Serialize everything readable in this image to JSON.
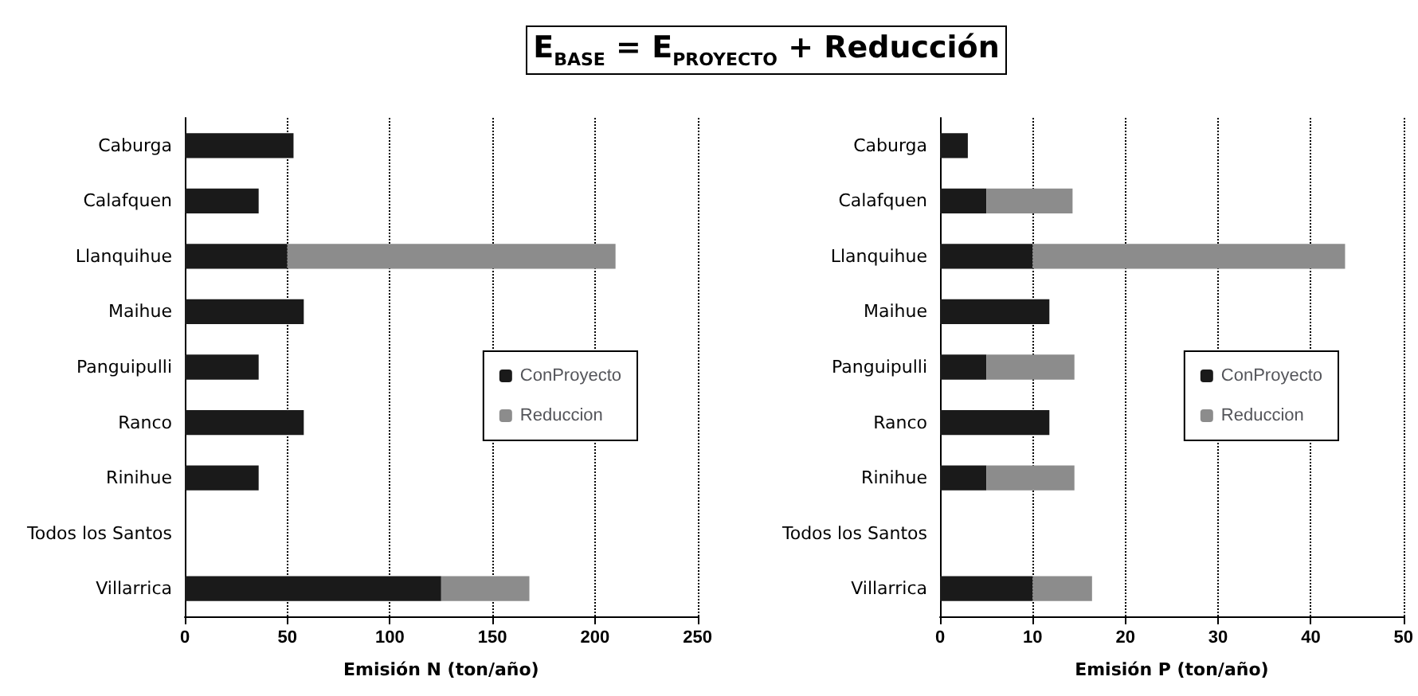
{
  "chart_data": [
    {
      "type": "bar",
      "title": "E$_{BASE}$ = E$_{PROYECTO}$ + Reducción",
      "orientation": "horizontal",
      "stacked": true,
      "xlabel": "Emisión N (ton/año)",
      "categories": [
        "Caburga",
        "Calafquen",
        "Llanquihue",
        "Maihue",
        "Panguipulli",
        "Ranco",
        "Rinihue",
        "Todos los Santos",
        "Villarrica"
      ],
      "series": [
        {
          "name": "ConProyecto",
          "color": "#1a1a1a",
          "values": [
            53,
            36,
            50,
            58,
            36,
            58,
            36,
            0,
            125
          ]
        },
        {
          "name": "Reduccion",
          "color": "#8c8c8c",
          "values": [
            0,
            0,
            160,
            0,
            0,
            0,
            0,
            0,
            43
          ]
        }
      ],
      "xlim": [
        0,
        250
      ],
      "xticks": [
        0,
        50,
        100,
        150,
        200,
        250
      ],
      "grid": "x",
      "legend": "right"
    },
    {
      "type": "bar",
      "orientation": "horizontal",
      "stacked": true,
      "xlabel": "Emisión P (ton/año)",
      "categories": [
        "Caburga",
        "Calafquen",
        "Llanquihue",
        "Maihue",
        "Panguipulli",
        "Ranco",
        "Rinihue",
        "Todos los Santos",
        "Villarrica"
      ],
      "series": [
        {
          "name": "ConProyecto",
          "color": "#1a1a1a",
          "values": [
            3,
            5,
            10,
            11.8,
            5,
            11.8,
            5,
            0,
            10
          ]
        },
        {
          "name": "Reduccion",
          "color": "#8c8c8c",
          "values": [
            0,
            9.3,
            33.7,
            0,
            9.5,
            0,
            9.5,
            0,
            6.4
          ]
        }
      ],
      "xlim": [
        0,
        50
      ],
      "xticks": [
        0,
        10,
        20,
        30,
        40,
        50
      ],
      "grid": "x",
      "legend": "right"
    }
  ]
}
